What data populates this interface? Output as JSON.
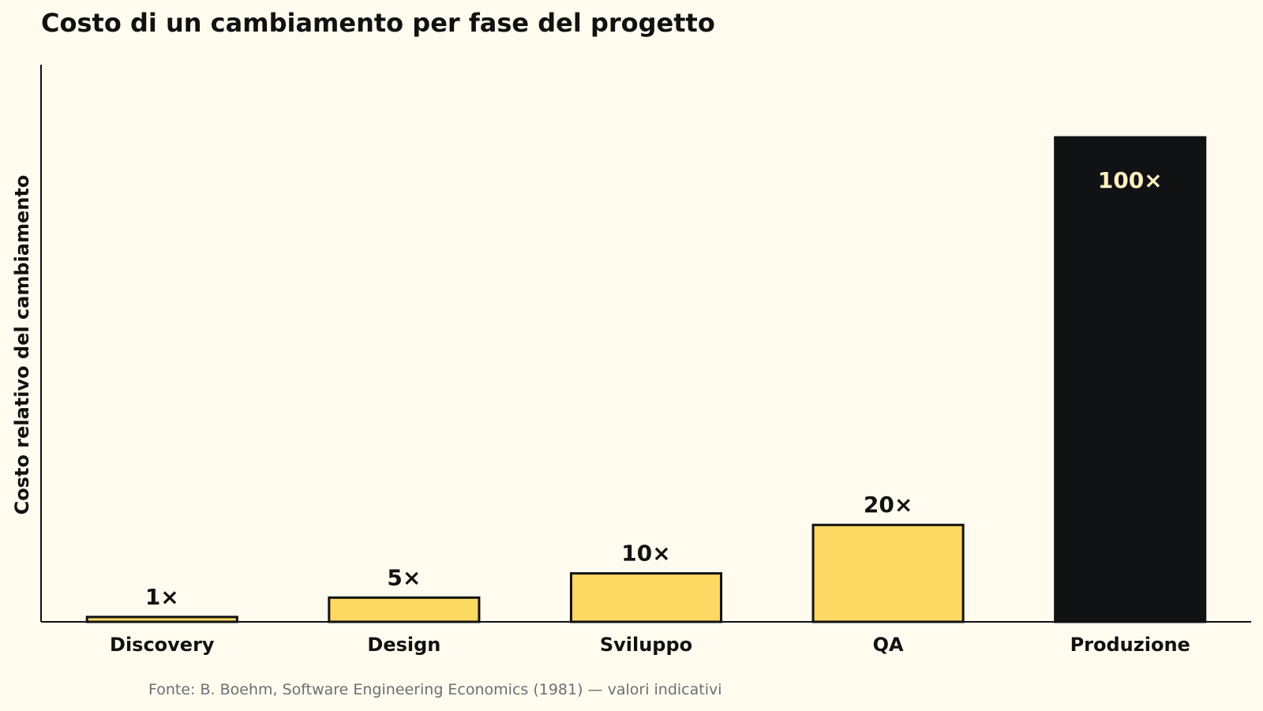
{
  "chart_data": {
    "type": "bar",
    "title": "Costo di un cambiamento per fase del progetto",
    "xlabel": "",
    "ylabel": "Costo relativo del cambiamento",
    "categories": [
      "Discovery",
      "Design",
      "Sviluppo",
      "QA",
      "Produzione"
    ],
    "values": [
      1,
      5,
      10,
      20,
      100
    ],
    "value_labels": [
      "1×",
      "5×",
      "10×",
      "20×",
      "100×"
    ],
    "ylim": [
      0,
      115
    ],
    "grid": false,
    "y_ticks_shown": false,
    "colors": {
      "bar": "#fdd963",
      "highlight_bar": "#111214",
      "highlight_label": "#fff1c2",
      "bar_edge": "#111111",
      "axis": "#111111",
      "background": "#fffbef"
    },
    "highlight_index": 4,
    "source": "Fonte: B. Boehm, Software Engineering Economics (1981) — valori indicativi"
  }
}
